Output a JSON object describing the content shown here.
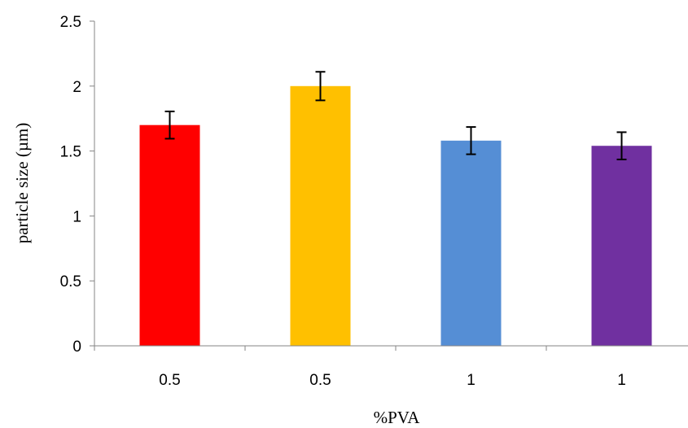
{
  "chart_data": {
    "type": "bar",
    "title": "",
    "xlabel": "%PVA",
    "ylabel": "particle size (µm)",
    "categories": [
      "0.5",
      "0.5",
      "1",
      "1"
    ],
    "values": [
      1.7,
      2.0,
      1.58,
      1.54
    ],
    "errors": [
      0.105,
      0.11,
      0.105,
      0.105
    ],
    "colors": [
      "#ff0000",
      "#ffc000",
      "#558ed5",
      "#7030a0"
    ],
    "ylim": [
      0,
      2.5
    ],
    "yticks": [
      "0",
      "0.5",
      "1",
      "1.5",
      "2",
      "2.5"
    ],
    "grid": false,
    "legend": "none"
  }
}
